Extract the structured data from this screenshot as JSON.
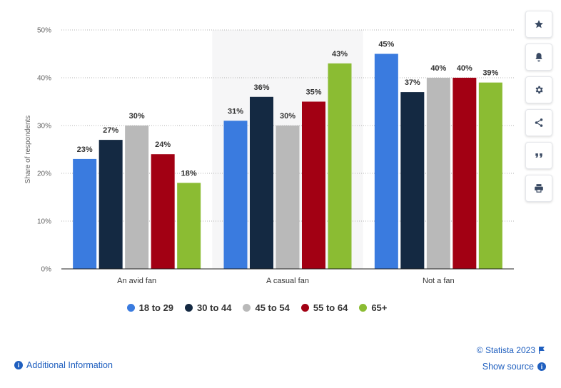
{
  "chart_data": {
    "type": "bar",
    "title": "",
    "xlabel": "",
    "ylabel": "Share of respondents",
    "ylim": [
      0,
      50
    ],
    "yticks": [
      "0%",
      "10%",
      "20%",
      "30%",
      "40%",
      "50%"
    ],
    "ytick_values": [
      0,
      10,
      20,
      30,
      40,
      50
    ],
    "categories": [
      "An avid fan",
      "A casual fan",
      "Not a fan"
    ],
    "highlight_category_index": 1,
    "series": [
      {
        "name": "18 to 29",
        "color": "#3a7bdf",
        "values": [
          23,
          31,
          45
        ],
        "labels": [
          "23%",
          "31%",
          "45%"
        ]
      },
      {
        "name": "30 to 44",
        "color": "#142942",
        "values": [
          27,
          36,
          37
        ],
        "labels": [
          "27%",
          "36%",
          "37%"
        ]
      },
      {
        "name": "45 to 54",
        "color": "#b9b9b9",
        "values": [
          30,
          30,
          40
        ],
        "labels": [
          "30%",
          "30%",
          "40%"
        ]
      },
      {
        "name": "55 to 64",
        "color": "#a20013",
        "values": [
          24,
          35,
          40
        ],
        "labels": [
          "24%",
          "35%",
          "40%"
        ]
      },
      {
        "name": "65+",
        "color": "#8bbc33",
        "values": [
          18,
          43,
          39
        ],
        "labels": [
          "18%",
          "43%",
          "39%"
        ]
      }
    ],
    "legend_position": "bottom"
  },
  "footer": {
    "additional_info": "Additional Information",
    "copyright": "© Statista 2023",
    "show_source": "Show source",
    "info_glyph": "i"
  },
  "tools": [
    {
      "name": "star-icon"
    },
    {
      "name": "bell-icon"
    },
    {
      "name": "gear-icon"
    },
    {
      "name": "share-icon"
    },
    {
      "name": "quote-icon"
    },
    {
      "name": "print-icon"
    }
  ]
}
